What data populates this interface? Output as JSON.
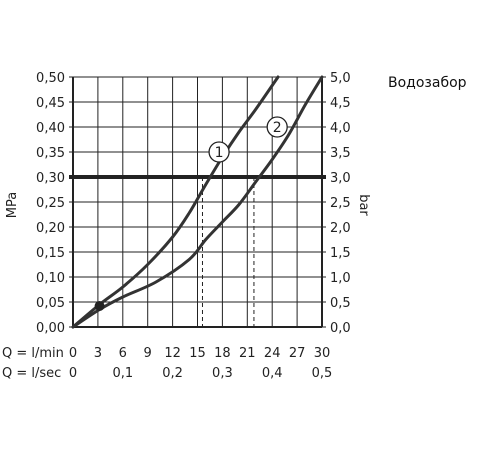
{
  "chart_data": {
    "type": "line",
    "title": "Водозабор",
    "ylabel_left": "MPa",
    "ylabel_right": "bar",
    "xlabel_lmin": "Q = l/min",
    "xlabel_lsec": "Q = l/sec",
    "xlim": [
      0,
      30
    ],
    "ylim": [
      0,
      0.5
    ],
    "ylim_right": [
      0,
      5
    ],
    "grid": true,
    "x_ticks": [
      "0",
      "3",
      "6",
      "9",
      "12",
      "15",
      "18",
      "21",
      "24",
      "27",
      "30"
    ],
    "x_ticks_lsec": [
      "0",
      "0,1",
      "0,2",
      "0,3",
      "0,4",
      "0,5"
    ],
    "y_ticks_left": [
      "0,00",
      "0,05",
      "0,10",
      "0,15",
      "0,20",
      "0,25",
      "0,30",
      "0,35",
      "0,40",
      "0,45",
      "0,50"
    ],
    "y_ticks_right": [
      "0,0",
      "0,5",
      "1,0",
      "1,5",
      "2,0",
      "2,5",
      "3,0",
      "3,5",
      "4,0",
      "4,5",
      "5,0"
    ],
    "series": [
      {
        "name": "1",
        "x": [
          0,
          3.2,
          6,
          9,
          12,
          14,
          16,
          18,
          20,
          22,
          24.7
        ],
        "y": [
          0,
          0.045,
          0.08,
          0.125,
          0.18,
          0.228,
          0.285,
          0.34,
          0.39,
          0.435,
          0.5
        ]
      },
      {
        "name": "2",
        "x": [
          0,
          3.2,
          6,
          10,
          14,
          16,
          18,
          20,
          22,
          24,
          26,
          28,
          30
        ],
        "y": [
          0,
          0.035,
          0.06,
          0.09,
          0.135,
          0.175,
          0.21,
          0.245,
          0.29,
          0.335,
          0.385,
          0.445,
          0.5
        ]
      }
    ],
    "reference_line": {
      "y": 0.3,
      "label": "3,0"
    },
    "drop_lines": [
      {
        "series": "1",
        "x": 15.6,
        "y": 0.3
      },
      {
        "series": "2",
        "x": 21.8,
        "y": 0.3
      }
    ],
    "marker": {
      "x": 3.2,
      "y": 0.042
    },
    "series_labels": [
      {
        "text": "1",
        "x": 17.6,
        "y": 0.35
      },
      {
        "text": "2",
        "x": 24.6,
        "y": 0.4
      }
    ]
  }
}
